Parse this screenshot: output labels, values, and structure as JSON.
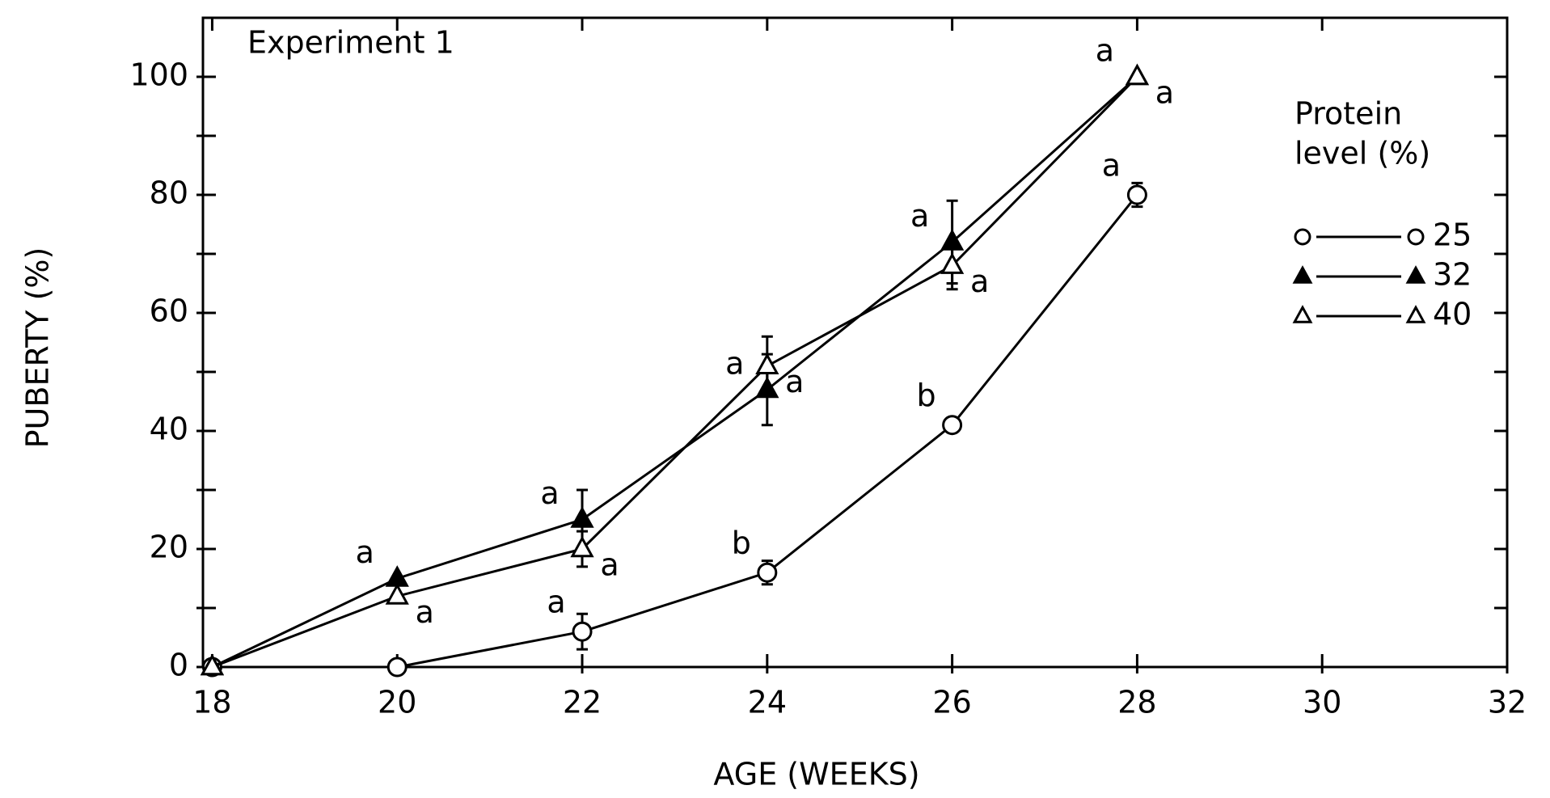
{
  "chart_data": {
    "type": "line",
    "title": "Experiment 1",
    "x_label": "AGE (WEEKS)",
    "y_label": "PUBERTY (%)",
    "xlim": [
      17.9,
      32
    ],
    "ylim": [
      0,
      110
    ],
    "xticks": [
      18,
      20,
      22,
      24,
      26,
      28,
      30,
      32
    ],
    "yticks": [
      0,
      20,
      40,
      60,
      80,
      100
    ],
    "yminor_ticks": [
      10,
      30,
      50,
      70,
      90
    ],
    "legend_title": [
      "Protein",
      "level (%)"
    ],
    "legend_position": "right",
    "x": [
      18,
      20,
      22,
      24,
      26,
      28
    ],
    "series": [
      {
        "name": "25",
        "color": "#000000",
        "marker": "circle-open",
        "values": [
          0,
          0,
          6,
          16,
          41,
          80
        ],
        "errors": [
          null,
          null,
          3,
          2,
          null,
          2
        ],
        "letters": [
          null,
          null,
          "a",
          "b",
          "b",
          "a"
        ]
      },
      {
        "name": "32",
        "color": "#000000",
        "marker": "triangle",
        "values": [
          0,
          15,
          25,
          47,
          72,
          100
        ],
        "errors": [
          null,
          null,
          5,
          6,
          7,
          null
        ],
        "letters": [
          null,
          "a",
          "a",
          "a",
          "a",
          "a"
        ]
      },
      {
        "name": "40",
        "color": "#000000",
        "marker": "triangle-open",
        "values": [
          0,
          12,
          20,
          51,
          68,
          100
        ],
        "errors": [
          null,
          null,
          3,
          5,
          4,
          null
        ],
        "letters": [
          null,
          "a",
          "a",
          "a",
          "a",
          "a"
        ]
      }
    ]
  }
}
